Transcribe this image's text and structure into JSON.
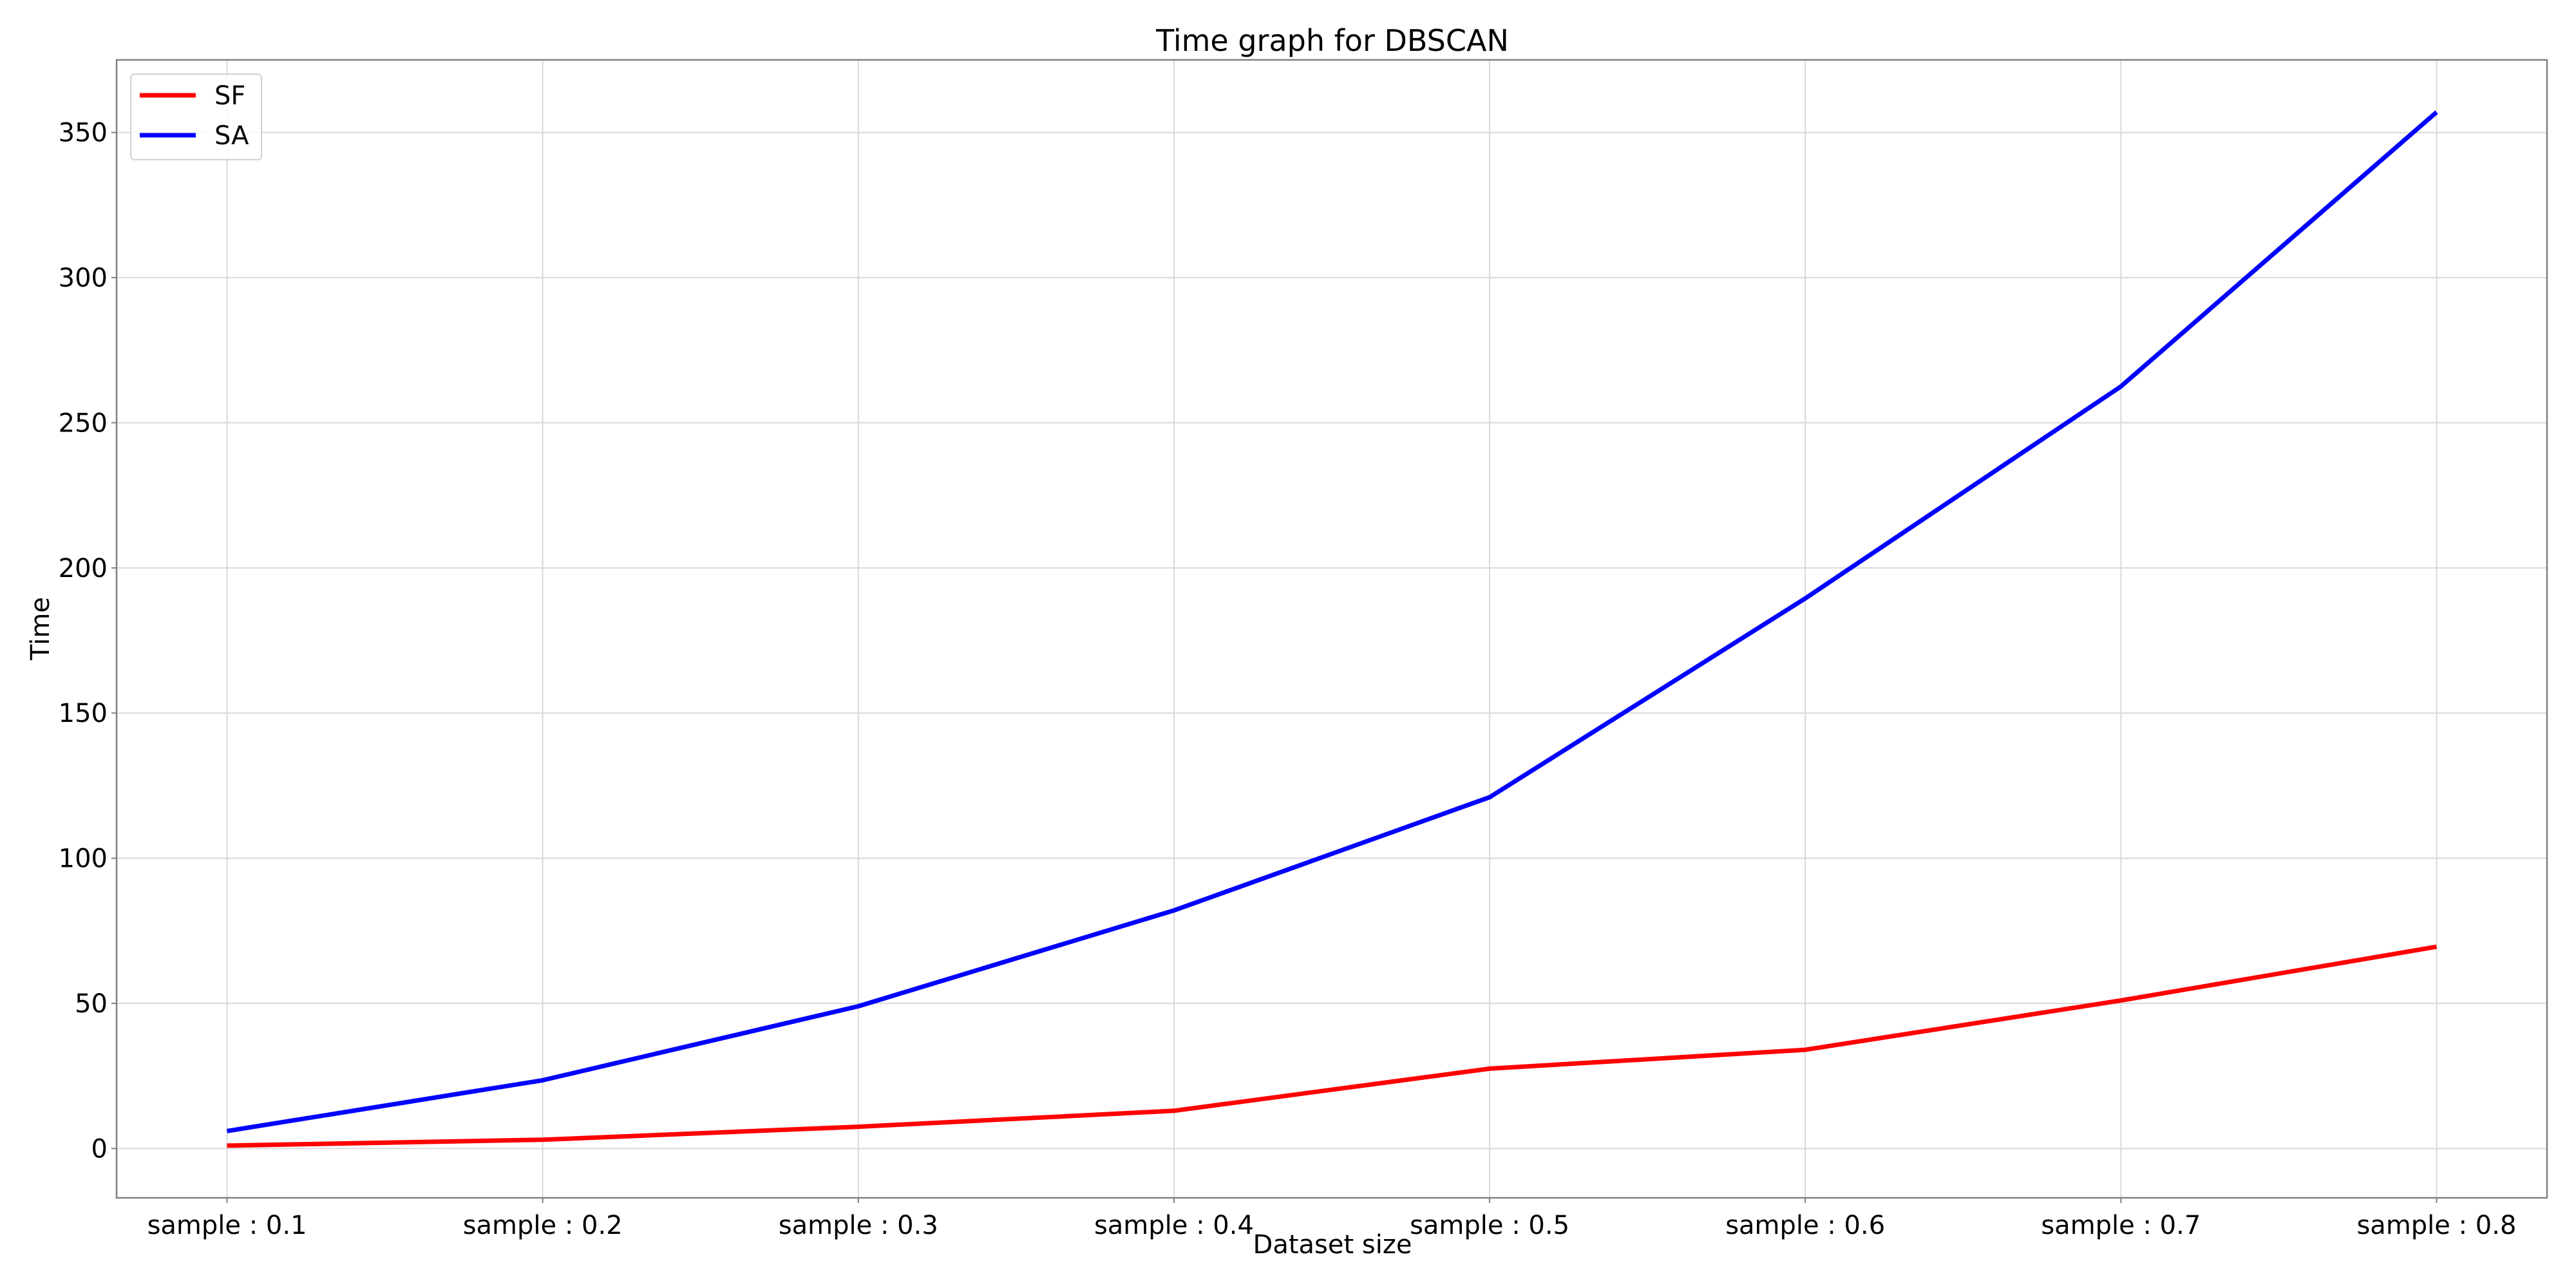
{
  "chart_data": {
    "type": "line",
    "title": "Time graph for DBSCAN",
    "xlabel": "Dataset size",
    "ylabel": "Time",
    "categories": [
      "sample : 0.1",
      "sample : 0.2",
      "sample : 0.3",
      "sample : 0.4",
      "sample : 0.5",
      "sample : 0.6",
      "sample : 0.7",
      "sample : 0.8"
    ],
    "ylim": [
      -17,
      375
    ],
    "yticks": [
      0,
      50,
      100,
      150,
      200,
      250,
      300,
      350
    ],
    "grid": true,
    "legend_position": "top-left",
    "series": [
      {
        "name": "SF",
        "color": "#ff0000",
        "values": [
          1,
          3,
          7.5,
          13,
          27.5,
          34,
          51,
          69.5
        ]
      },
      {
        "name": "SA",
        "color": "#0000ff",
        "values": [
          6,
          23.5,
          49,
          82,
          121,
          189.5,
          262.5,
          357
        ]
      }
    ]
  }
}
